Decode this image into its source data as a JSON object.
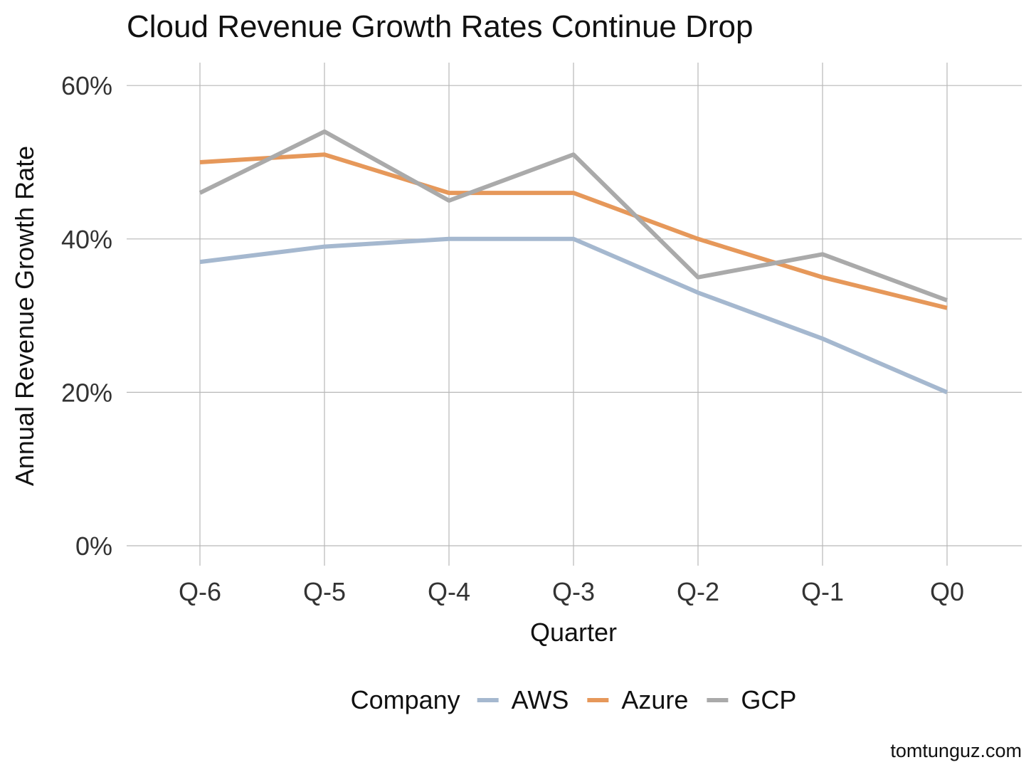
{
  "chart_data": {
    "type": "line",
    "title": "Cloud Revenue Growth Rates Continue Drop",
    "xlabel": "Quarter",
    "ylabel": "Annual Revenue Growth Rate",
    "categories": [
      "Q-6",
      "Q-5",
      "Q-4",
      "Q-3",
      "Q-2",
      "Q-1",
      "Q0"
    ],
    "y_ticks": [
      0,
      20,
      40,
      60
    ],
    "y_tick_labels": [
      "0%",
      "20%",
      "40%",
      "60%"
    ],
    "y_unit": "%",
    "ylim": [
      0,
      60
    ],
    "grid": true,
    "legend": {
      "title": "Company",
      "position": "bottom"
    },
    "series": [
      {
        "name": "AWS",
        "color": "#a5b8cf",
        "values": [
          37,
          39,
          40,
          40,
          33,
          27,
          20
        ]
      },
      {
        "name": "Azure",
        "color": "#e6985a",
        "values": [
          50,
          51,
          46,
          46,
          40,
          35,
          31
        ]
      },
      {
        "name": "GCP",
        "color": "#aaaaaa",
        "values": [
          46,
          54,
          45,
          51,
          35,
          38,
          32
        ]
      }
    ]
  },
  "credit": "tomtunguz.com"
}
